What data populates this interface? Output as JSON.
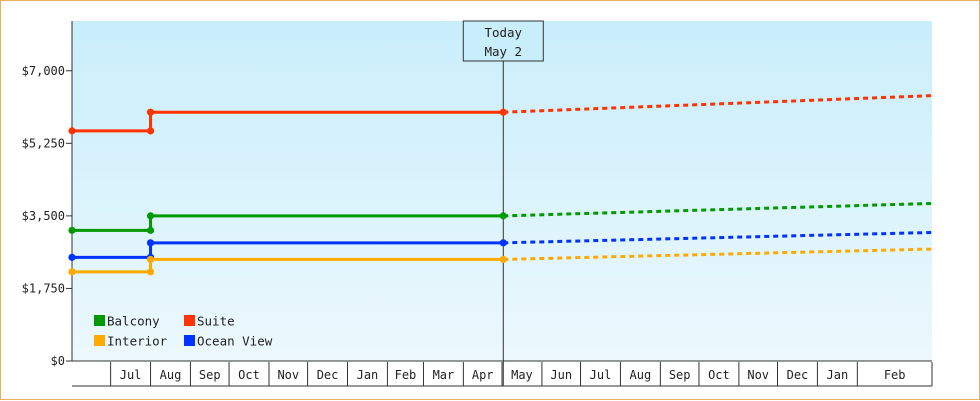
{
  "chart_data": {
    "type": "line",
    "step": true,
    "y_ticks": [
      "$0",
      "$1,750",
      "$3,500",
      "$5,250",
      "$7,000"
    ],
    "y_tick_values": [
      0,
      1750,
      3500,
      5250,
      7000
    ],
    "ylim": [
      0,
      8200
    ],
    "x_start": "2016-06-01",
    "x_end": "2018-03-31",
    "month_labels": [
      {
        "label": "Jul",
        "date": "2016-07-01"
      },
      {
        "label": "Aug",
        "date": "2016-08-01"
      },
      {
        "label": "Sep",
        "date": "2016-09-01"
      },
      {
        "label": "Oct",
        "date": "2016-10-01"
      },
      {
        "label": "Nov",
        "date": "2016-11-01"
      },
      {
        "label": "Dec",
        "date": "2016-12-01"
      },
      {
        "label": "Jan",
        "date": "2017-01-01"
      },
      {
        "label": "Feb",
        "date": "2017-02-01"
      },
      {
        "label": "Mar",
        "date": "2017-03-01"
      },
      {
        "label": "Apr",
        "date": "2017-04-01"
      },
      {
        "label": "May",
        "date": "2017-05-01"
      },
      {
        "label": "Jun",
        "date": "2017-06-01"
      },
      {
        "label": "Jul",
        "date": "2017-07-01"
      },
      {
        "label": "Aug",
        "date": "2017-08-01"
      },
      {
        "label": "Sep",
        "date": "2017-09-01"
      },
      {
        "label": "Oct",
        "date": "2017-10-01"
      },
      {
        "label": "Nov",
        "date": "2017-11-01"
      },
      {
        "label": "Dec",
        "date": "2017-12-01"
      },
      {
        "label": "Jan",
        "date": "2018-01-01"
      },
      {
        "label": "Feb",
        "date": "2018-02-01"
      }
    ],
    "today": {
      "line1": "Today",
      "line2": "May 2",
      "date": "2017-05-02"
    },
    "forecast_end": "2018-03-31",
    "series": [
      {
        "name": "Suite",
        "color": "#ff3300",
        "points": [
          [
            "2016-06-01",
            5550
          ],
          [
            "2016-08-01",
            5550
          ],
          [
            "2016-08-01",
            6000
          ],
          [
            "2017-05-02",
            6000
          ]
        ],
        "forecast_end_value": 6400
      },
      {
        "name": "Balcony",
        "color": "#009900",
        "points": [
          [
            "2016-06-01",
            3150
          ],
          [
            "2016-08-01",
            3150
          ],
          [
            "2016-08-01",
            3500
          ],
          [
            "2017-05-02",
            3500
          ]
        ],
        "forecast_end_value": 3800
      },
      {
        "name": "Ocean View",
        "color": "#0033ff",
        "points": [
          [
            "2016-06-01",
            2500
          ],
          [
            "2016-08-01",
            2500
          ],
          [
            "2016-08-01",
            2850
          ],
          [
            "2017-05-02",
            2850
          ]
        ],
        "forecast_end_value": 3100
      },
      {
        "name": "Interior",
        "color": "#ffaa00",
        "points": [
          [
            "2016-06-01",
            2150
          ],
          [
            "2016-08-01",
            2150
          ],
          [
            "2016-08-01",
            2450
          ],
          [
            "2017-05-02",
            2450
          ]
        ],
        "forecast_end_value": 2700
      }
    ],
    "legend_order": [
      "Balcony",
      "Suite",
      "Interior",
      "Ocean View"
    ],
    "legend_position": "bottom-left",
    "grid": false
  }
}
